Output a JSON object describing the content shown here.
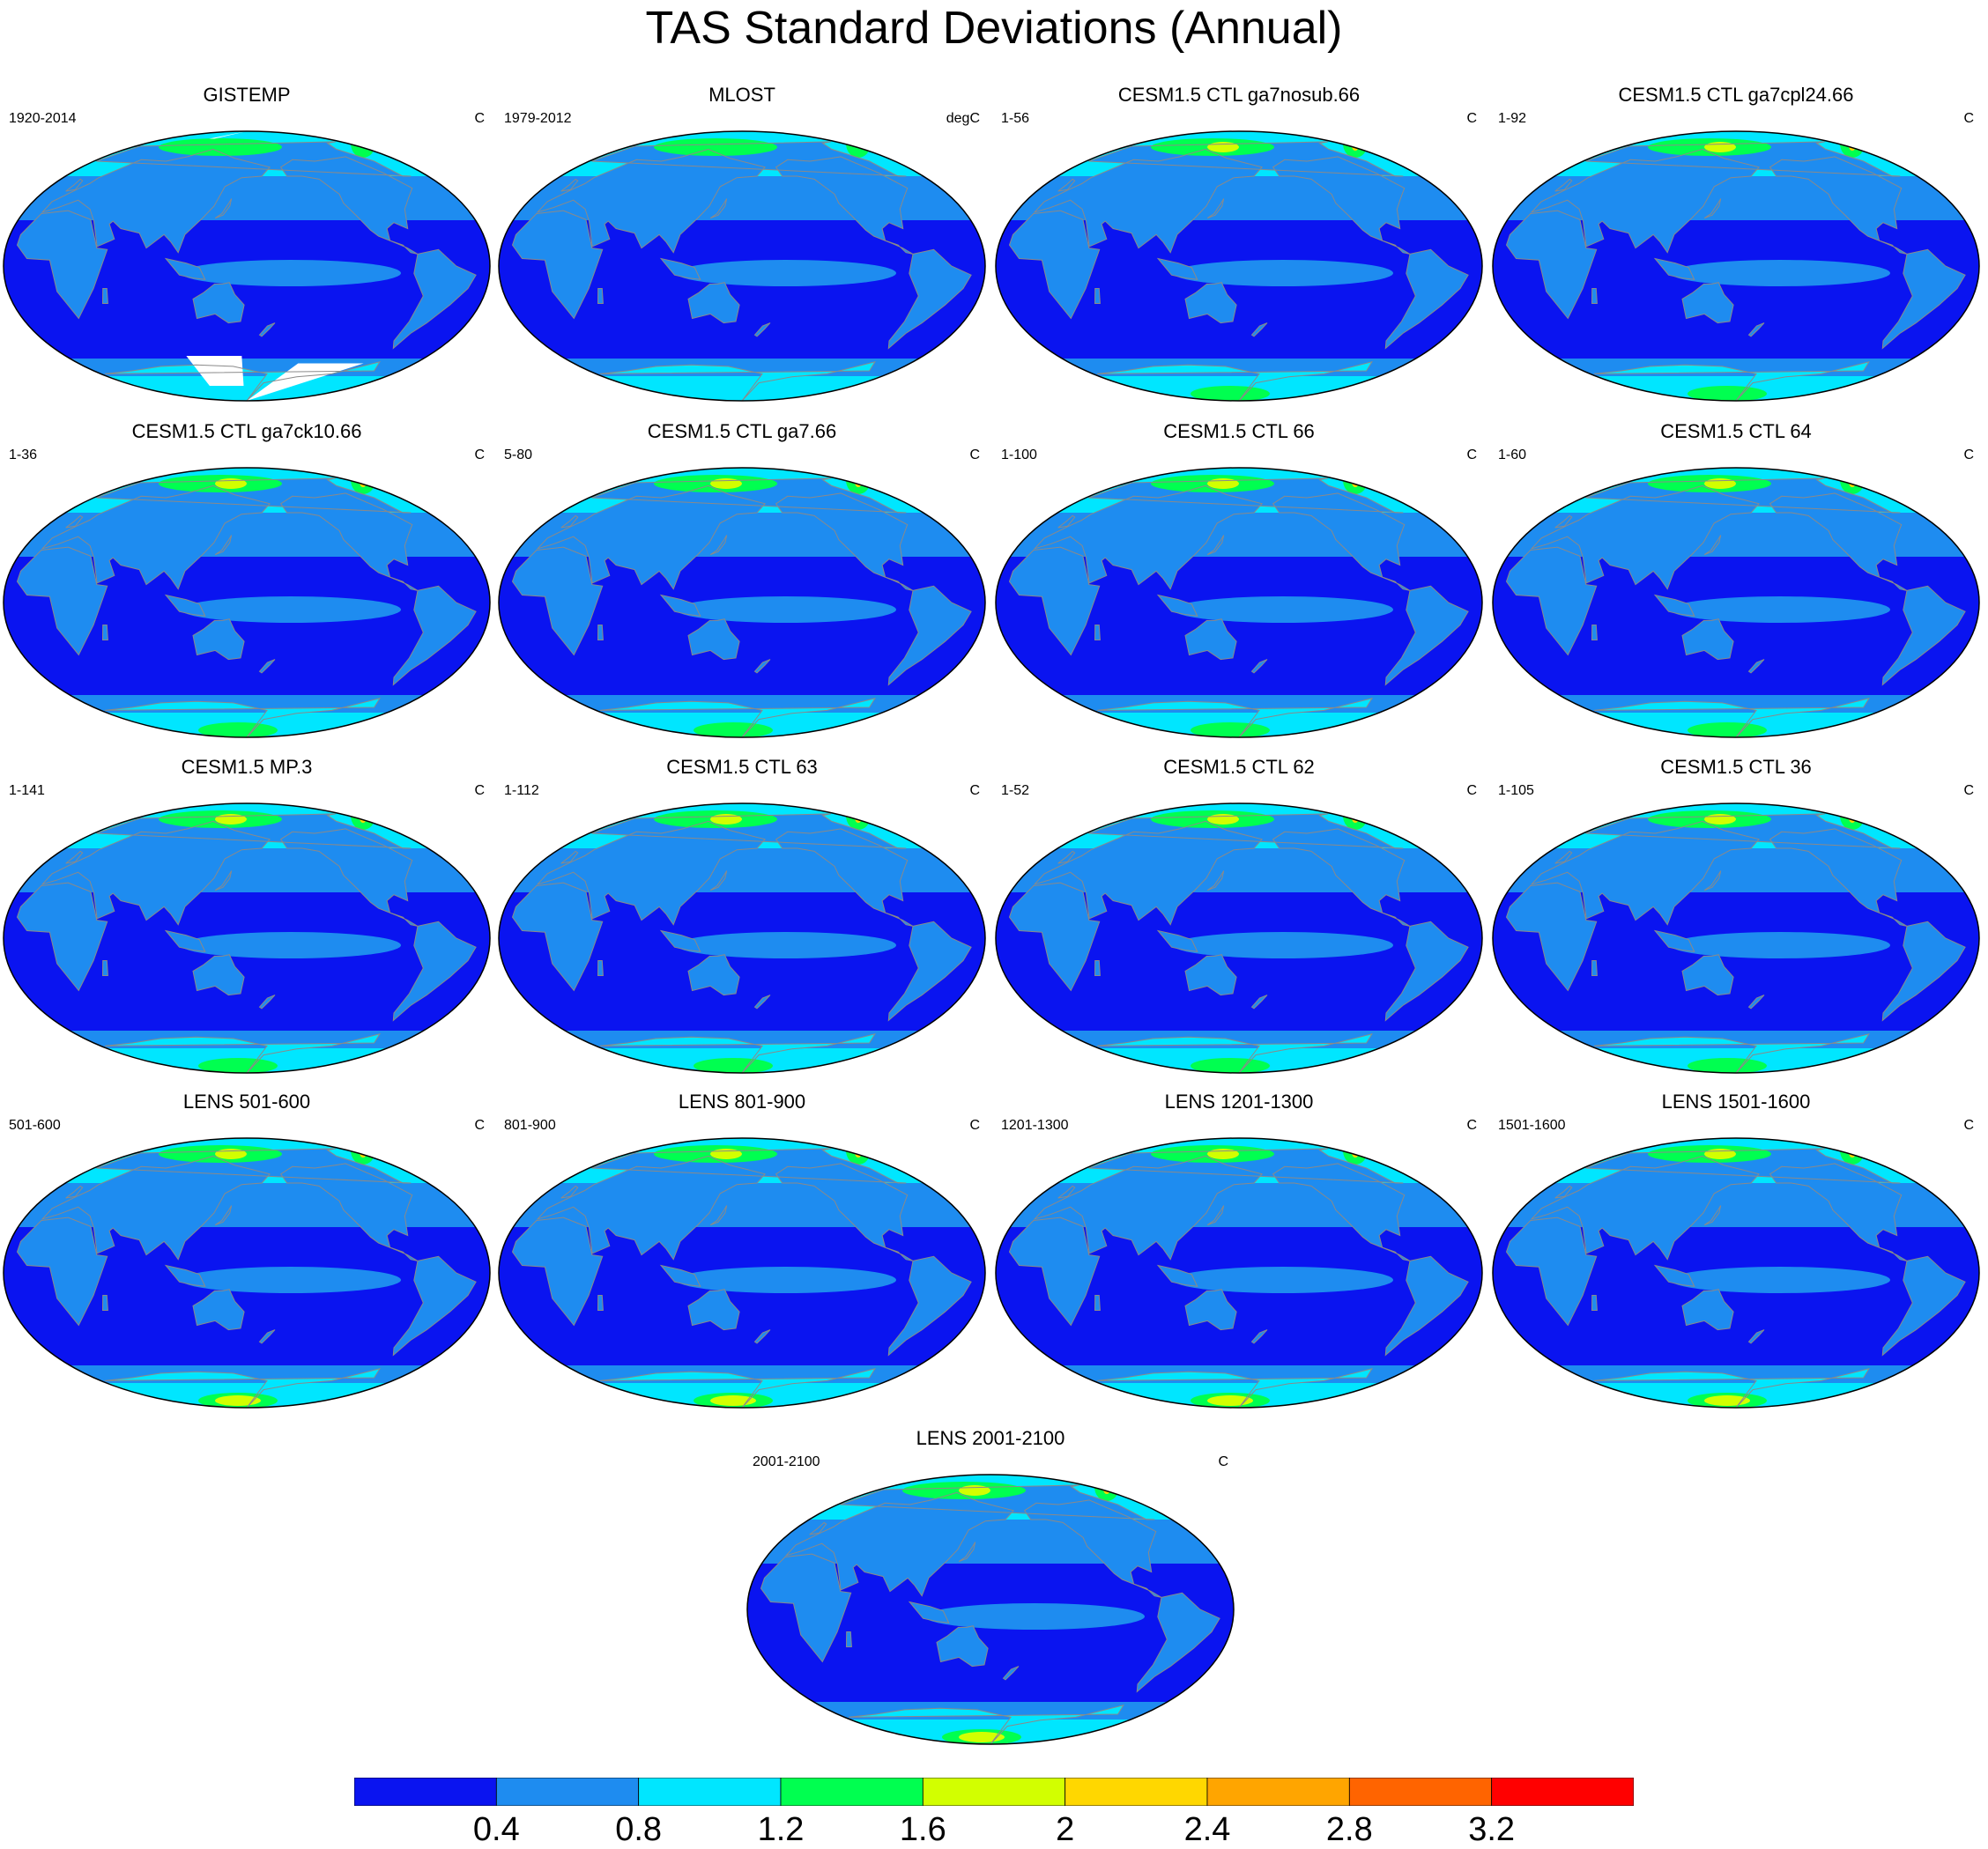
{
  "figure_title": "TAS Standard Deviations (Annual)",
  "panels": [
    {
      "title": "GISTEMP",
      "left_label": "1920-2014",
      "right_label": "C",
      "missing": "gistemp"
    },
    {
      "title": "MLOST",
      "left_label": "1979-2012",
      "right_label": "degC",
      "missing": "mlost"
    },
    {
      "title": "CESM1.5 CTL ga7nosub.66",
      "left_label": "1-56",
      "right_label": "C"
    },
    {
      "title": "CESM1.5 CTL ga7cpl24.66",
      "left_label": "1-92",
      "right_label": "C"
    },
    {
      "title": "CESM1.5 CTL ga7ck10.66",
      "left_label": "1-36",
      "right_label": "C"
    },
    {
      "title": "CESM1.5 CTL ga7.66",
      "left_label": "5-80",
      "right_label": "C"
    },
    {
      "title": "CESM1.5 CTL 66",
      "left_label": "1-100",
      "right_label": "C"
    },
    {
      "title": "CESM1.5 CTL 64",
      "left_label": "1-60",
      "right_label": "C"
    },
    {
      "title": "CESM1.5 MP.3",
      "left_label": "1-141",
      "right_label": "C"
    },
    {
      "title": "CESM1.5 CTL 63",
      "left_label": "1-112",
      "right_label": "C"
    },
    {
      "title": "CESM1.5 CTL 62",
      "left_label": "1-52",
      "right_label": "C"
    },
    {
      "title": "CESM1.5 CTL 36",
      "left_label": "1-105",
      "right_label": "C"
    },
    {
      "title": "LENS 501-600",
      "left_label": "501-600",
      "right_label": "C"
    },
    {
      "title": "LENS 801-900",
      "left_label": "801-900",
      "right_label": "C"
    },
    {
      "title": "LENS 1201-1300",
      "left_label": "1201-1300",
      "right_label": "C"
    },
    {
      "title": "LENS 1501-1600",
      "left_label": "1501-1600",
      "right_label": "C"
    },
    {
      "title": "LENS 2001-2100",
      "left_label": "2001-2100",
      "right_label": "C"
    }
  ],
  "colorbar": {
    "colors": [
      "#0a14f0",
      "#1e8cf0",
      "#00e6ff",
      "#00ff50",
      "#d2ff00",
      "#ffd700",
      "#ffa500",
      "#ff6400",
      "#ff0000"
    ],
    "labels": [
      "0.4",
      "0.8",
      "1.2",
      "1.6",
      "2",
      "2.4",
      "2.8",
      "3.2"
    ]
  }
}
